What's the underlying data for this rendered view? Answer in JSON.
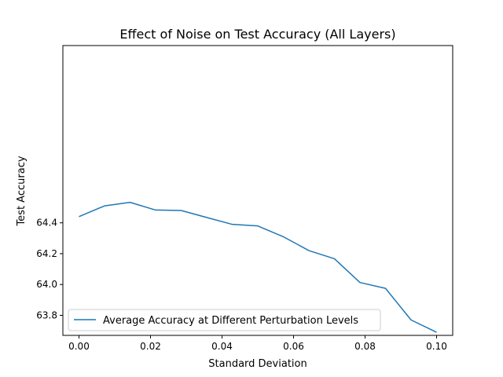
{
  "chart_data": {
    "type": "line",
    "title": "Effect of Noise on Test Accuracy (All Layers)",
    "xlabel": "Standard Deviation",
    "ylabel": "Test Accuracy",
    "xlim": [
      -0.0045,
      0.1045
    ],
    "ylim": [
      63.67,
      65.55
    ],
    "xticks": [
      0.0,
      0.02,
      0.04,
      0.06,
      0.08,
      0.1
    ],
    "xtick_labels": [
      "0.00",
      "0.02",
      "0.04",
      "0.06",
      "0.08",
      "0.10"
    ],
    "yticks": [
      63.8,
      64.0,
      64.2,
      64.4
    ],
    "ytick_labels": [
      "63.8",
      "64.0",
      "64.2",
      "64.4"
    ],
    "grid": false,
    "legend_position": "lower-left",
    "series": [
      {
        "name": "Average Accuracy at Different Perturbation Levels",
        "color": "#1f77b4",
        "x": [
          0.0,
          0.00714,
          0.01429,
          0.02143,
          0.02857,
          0.03571,
          0.04286,
          0.05,
          0.05714,
          0.06429,
          0.07143,
          0.07857,
          0.08571,
          0.09286,
          0.1
        ],
        "y": [
          64.44,
          64.51,
          64.533,
          64.483,
          64.48,
          64.435,
          64.39,
          64.38,
          64.31,
          64.22,
          64.167,
          64.013,
          63.975,
          63.77,
          63.69
        ]
      }
    ]
  }
}
